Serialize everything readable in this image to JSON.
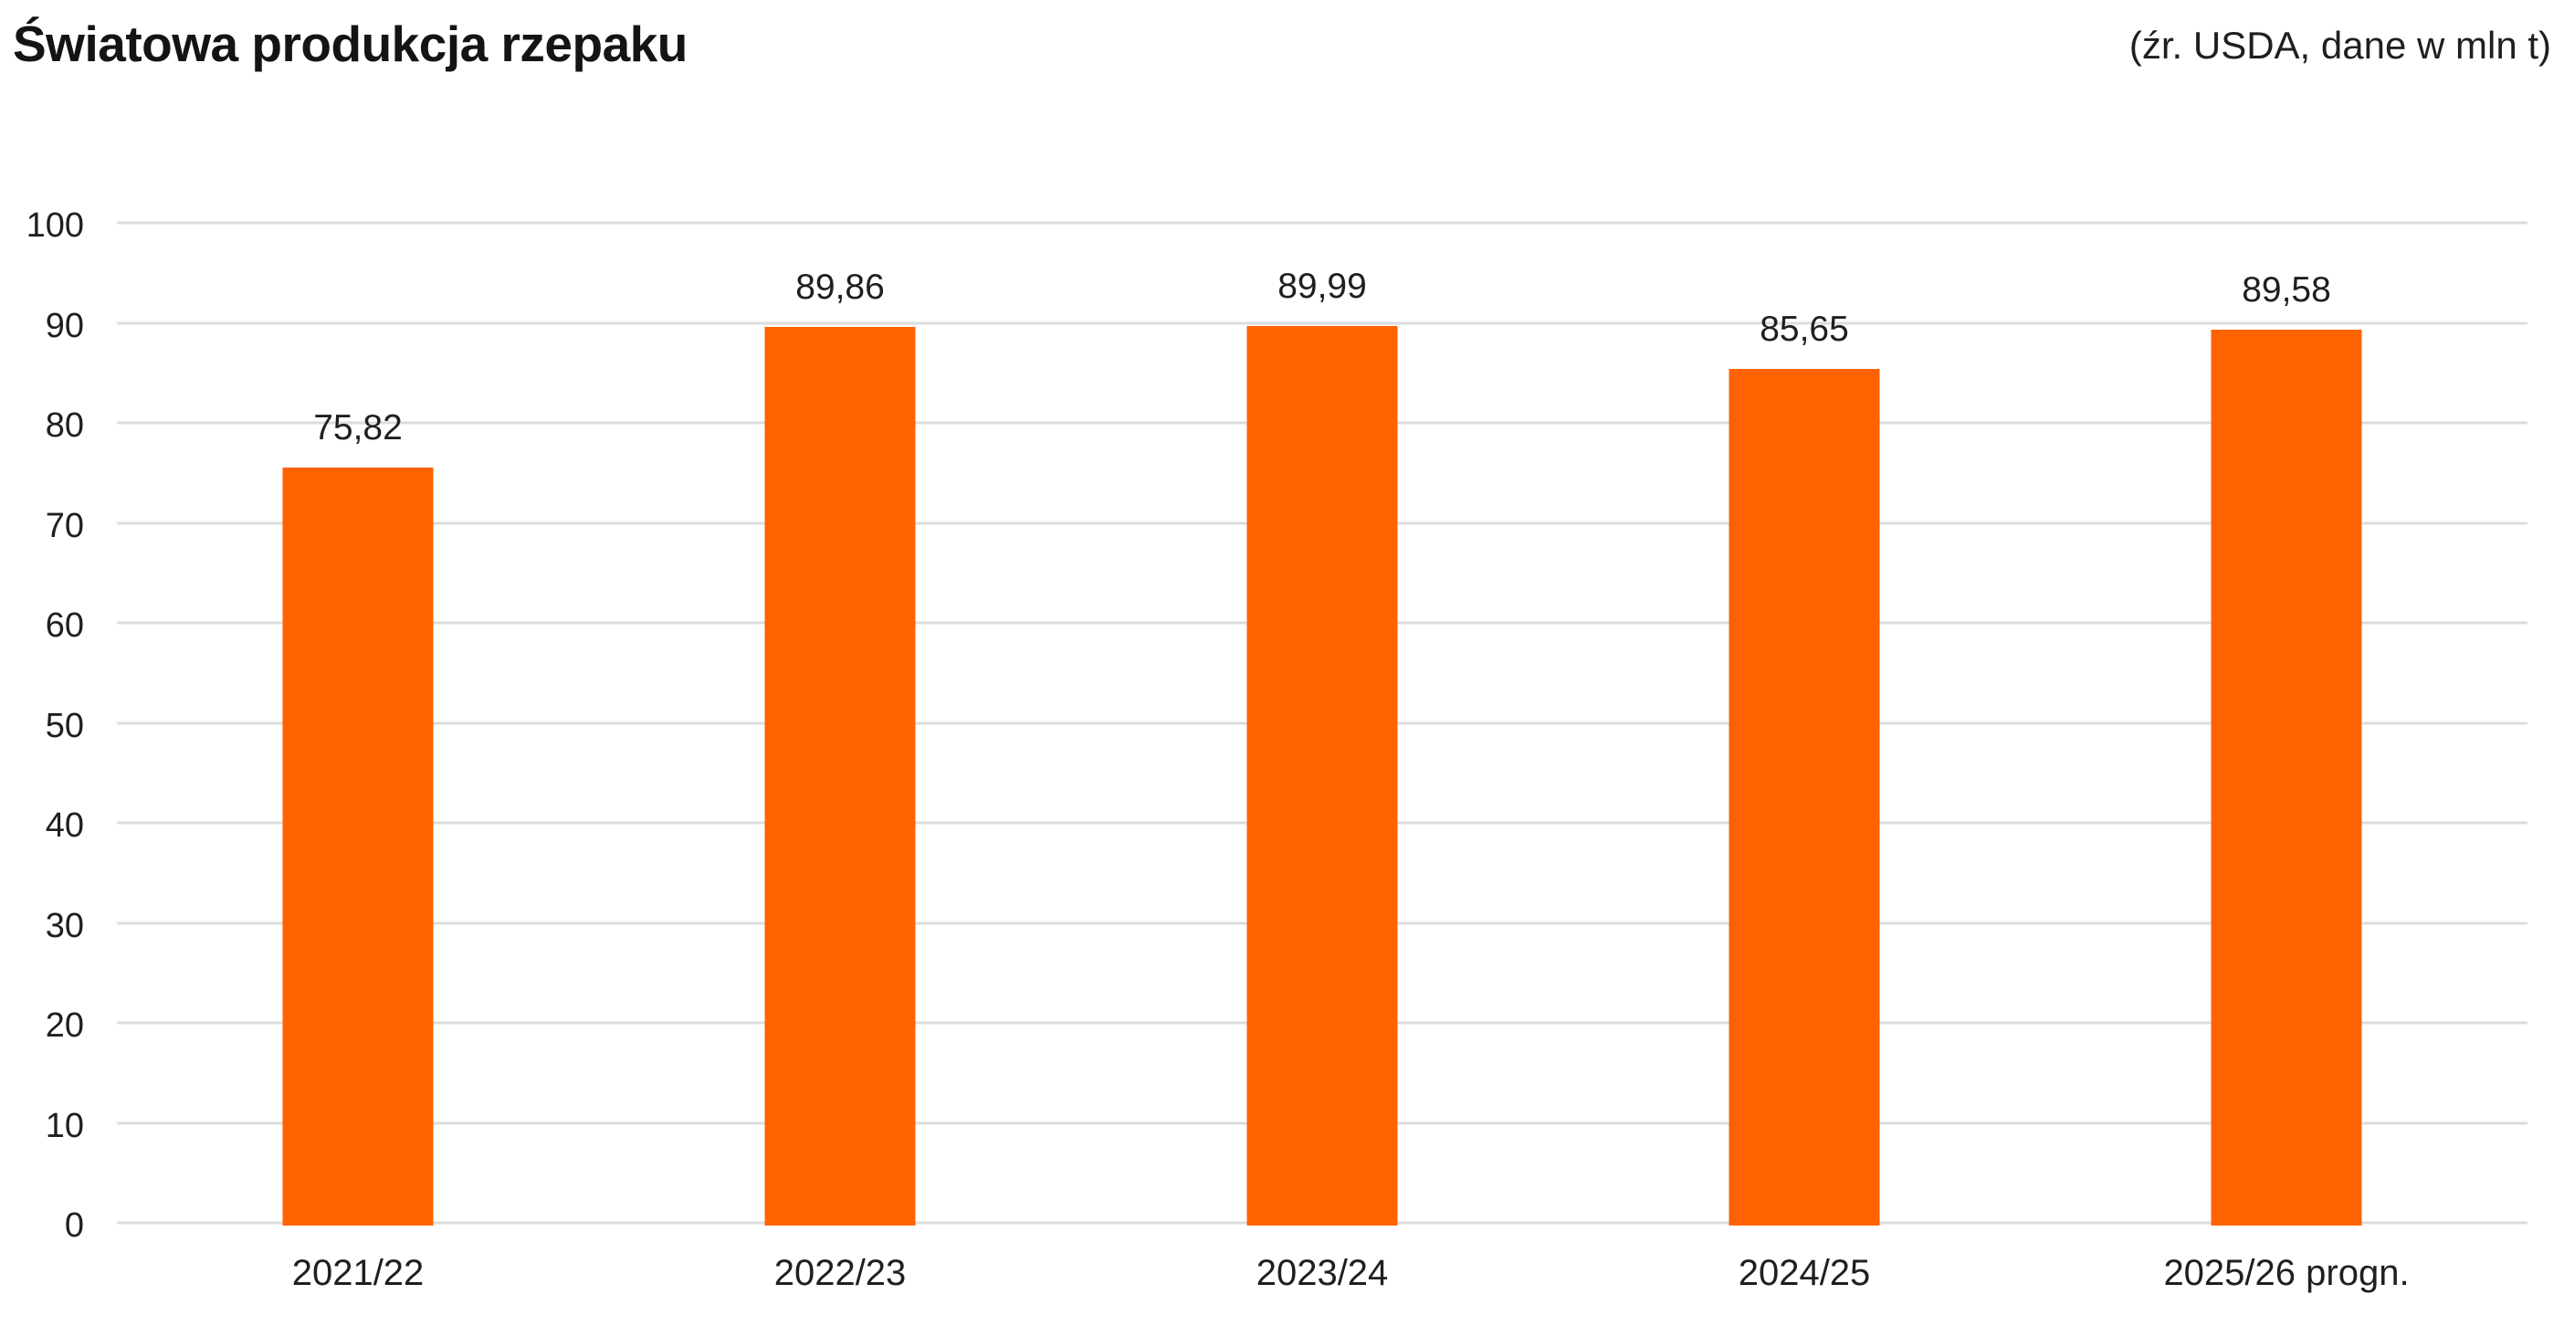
{
  "header": {
    "title": "Światowa produkcja rzepaku",
    "source_note": "(źr. USDA, dane w mln t)"
  },
  "chart_data": {
    "type": "bar",
    "title": "Światowa produkcja rzepaku",
    "source_note": "(źr. USDA, dane w mln t)",
    "unit": "mln t",
    "categories": [
      "2021/22",
      "2022/23",
      "2023/24",
      "2024/25",
      "2025/26 progn."
    ],
    "values": [
      75.82,
      89.86,
      89.99,
      85.65,
      89.58
    ],
    "value_labels": [
      "75,82",
      "89,86",
      "89,99",
      "85,65",
      "89,58"
    ],
    "ylim": [
      0,
      100
    ],
    "yticks": [
      0,
      10,
      20,
      30,
      40,
      50,
      60,
      70,
      80,
      90,
      100
    ],
    "grid": "horizontal",
    "legend_position": "none",
    "colors": {
      "bar": "#FF6200",
      "grid": "#DCDCDC",
      "text": "#1F1F1F",
      "background": "#FFFFFF"
    }
  }
}
